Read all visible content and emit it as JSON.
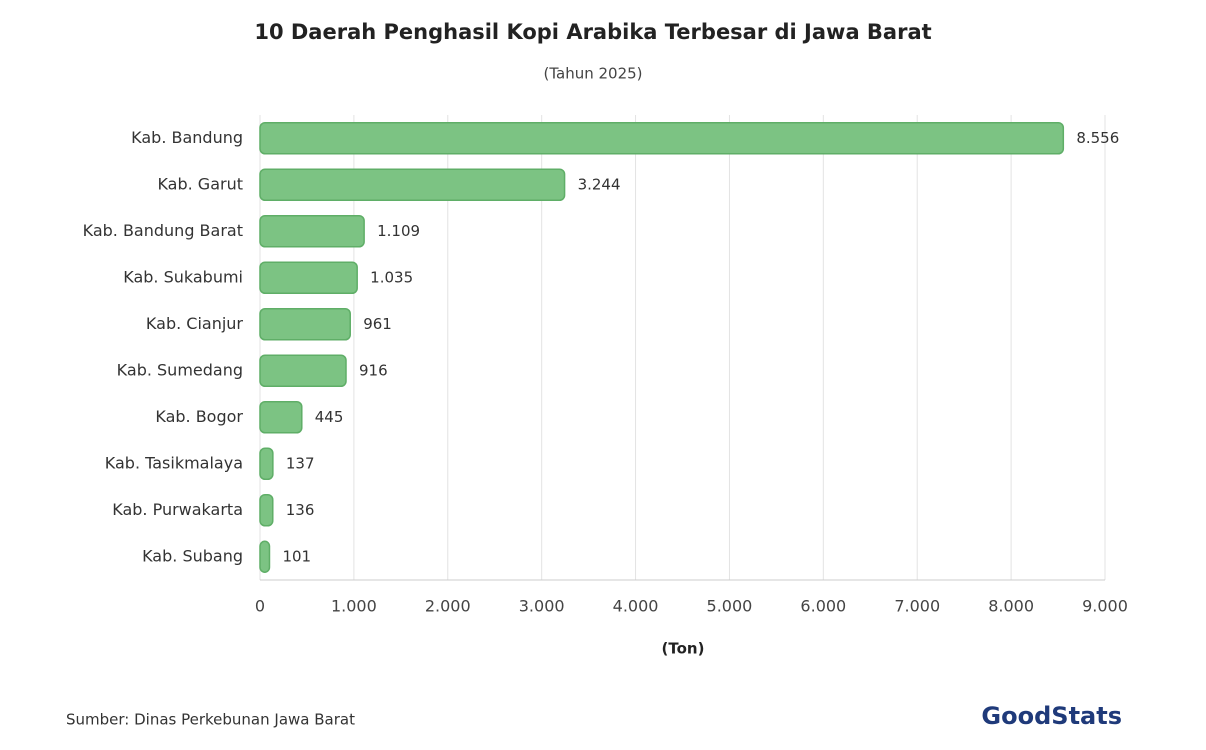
{
  "chart_data": {
    "type": "bar",
    "orientation": "horizontal",
    "title": "10 Daerah Penghasil Kopi Arabika Terbesar di Jawa Barat",
    "subtitle": "(Tahun 2025)",
    "x_label": "(Ton)",
    "categories": [
      "Kab. Bandung",
      "Kab. Garut",
      "Kab. Bandung Barat",
      "Kab. Sukabumi",
      "Kab. Cianjur",
      "Kab. Sumedang",
      "Kab. Bogor",
      "Kab. Tasikmalaya",
      "Kab. Purwakarta",
      "Kab. Subang"
    ],
    "values": [
      8556,
      3244,
      1109,
      1035,
      961,
      916,
      445,
      137,
      136,
      101
    ],
    "value_labels": [
      "8.556",
      "3.244",
      "1.109",
      "1.035",
      "961",
      "916",
      "445",
      "137",
      "136",
      "101"
    ],
    "color": "#7cc383",
    "xlim": [
      0,
      9000
    ],
    "xticks": [
      0,
      {
        "value": 1000,
        "label": "1.000"
      },
      {
        "value": 2000,
        "label": "2.000"
      },
      {
        "value": 3000,
        "label": "3.000"
      },
      {
        "value": 4000,
        "label": "4.000"
      },
      {
        "value": 5000,
        "label": "5.000"
      },
      {
        "value": 6000,
        "label": "6.000"
      },
      {
        "value": 7000,
        "label": "7.000"
      },
      {
        "value": 8000,
        "label": "8.000"
      },
      {
        "value": 9000,
        "label": "9.000"
      }
    ],
    "grid": true,
    "source": "Sumber: Dinas Perkebunan Jawa Barat",
    "brand": "GoodStats"
  }
}
